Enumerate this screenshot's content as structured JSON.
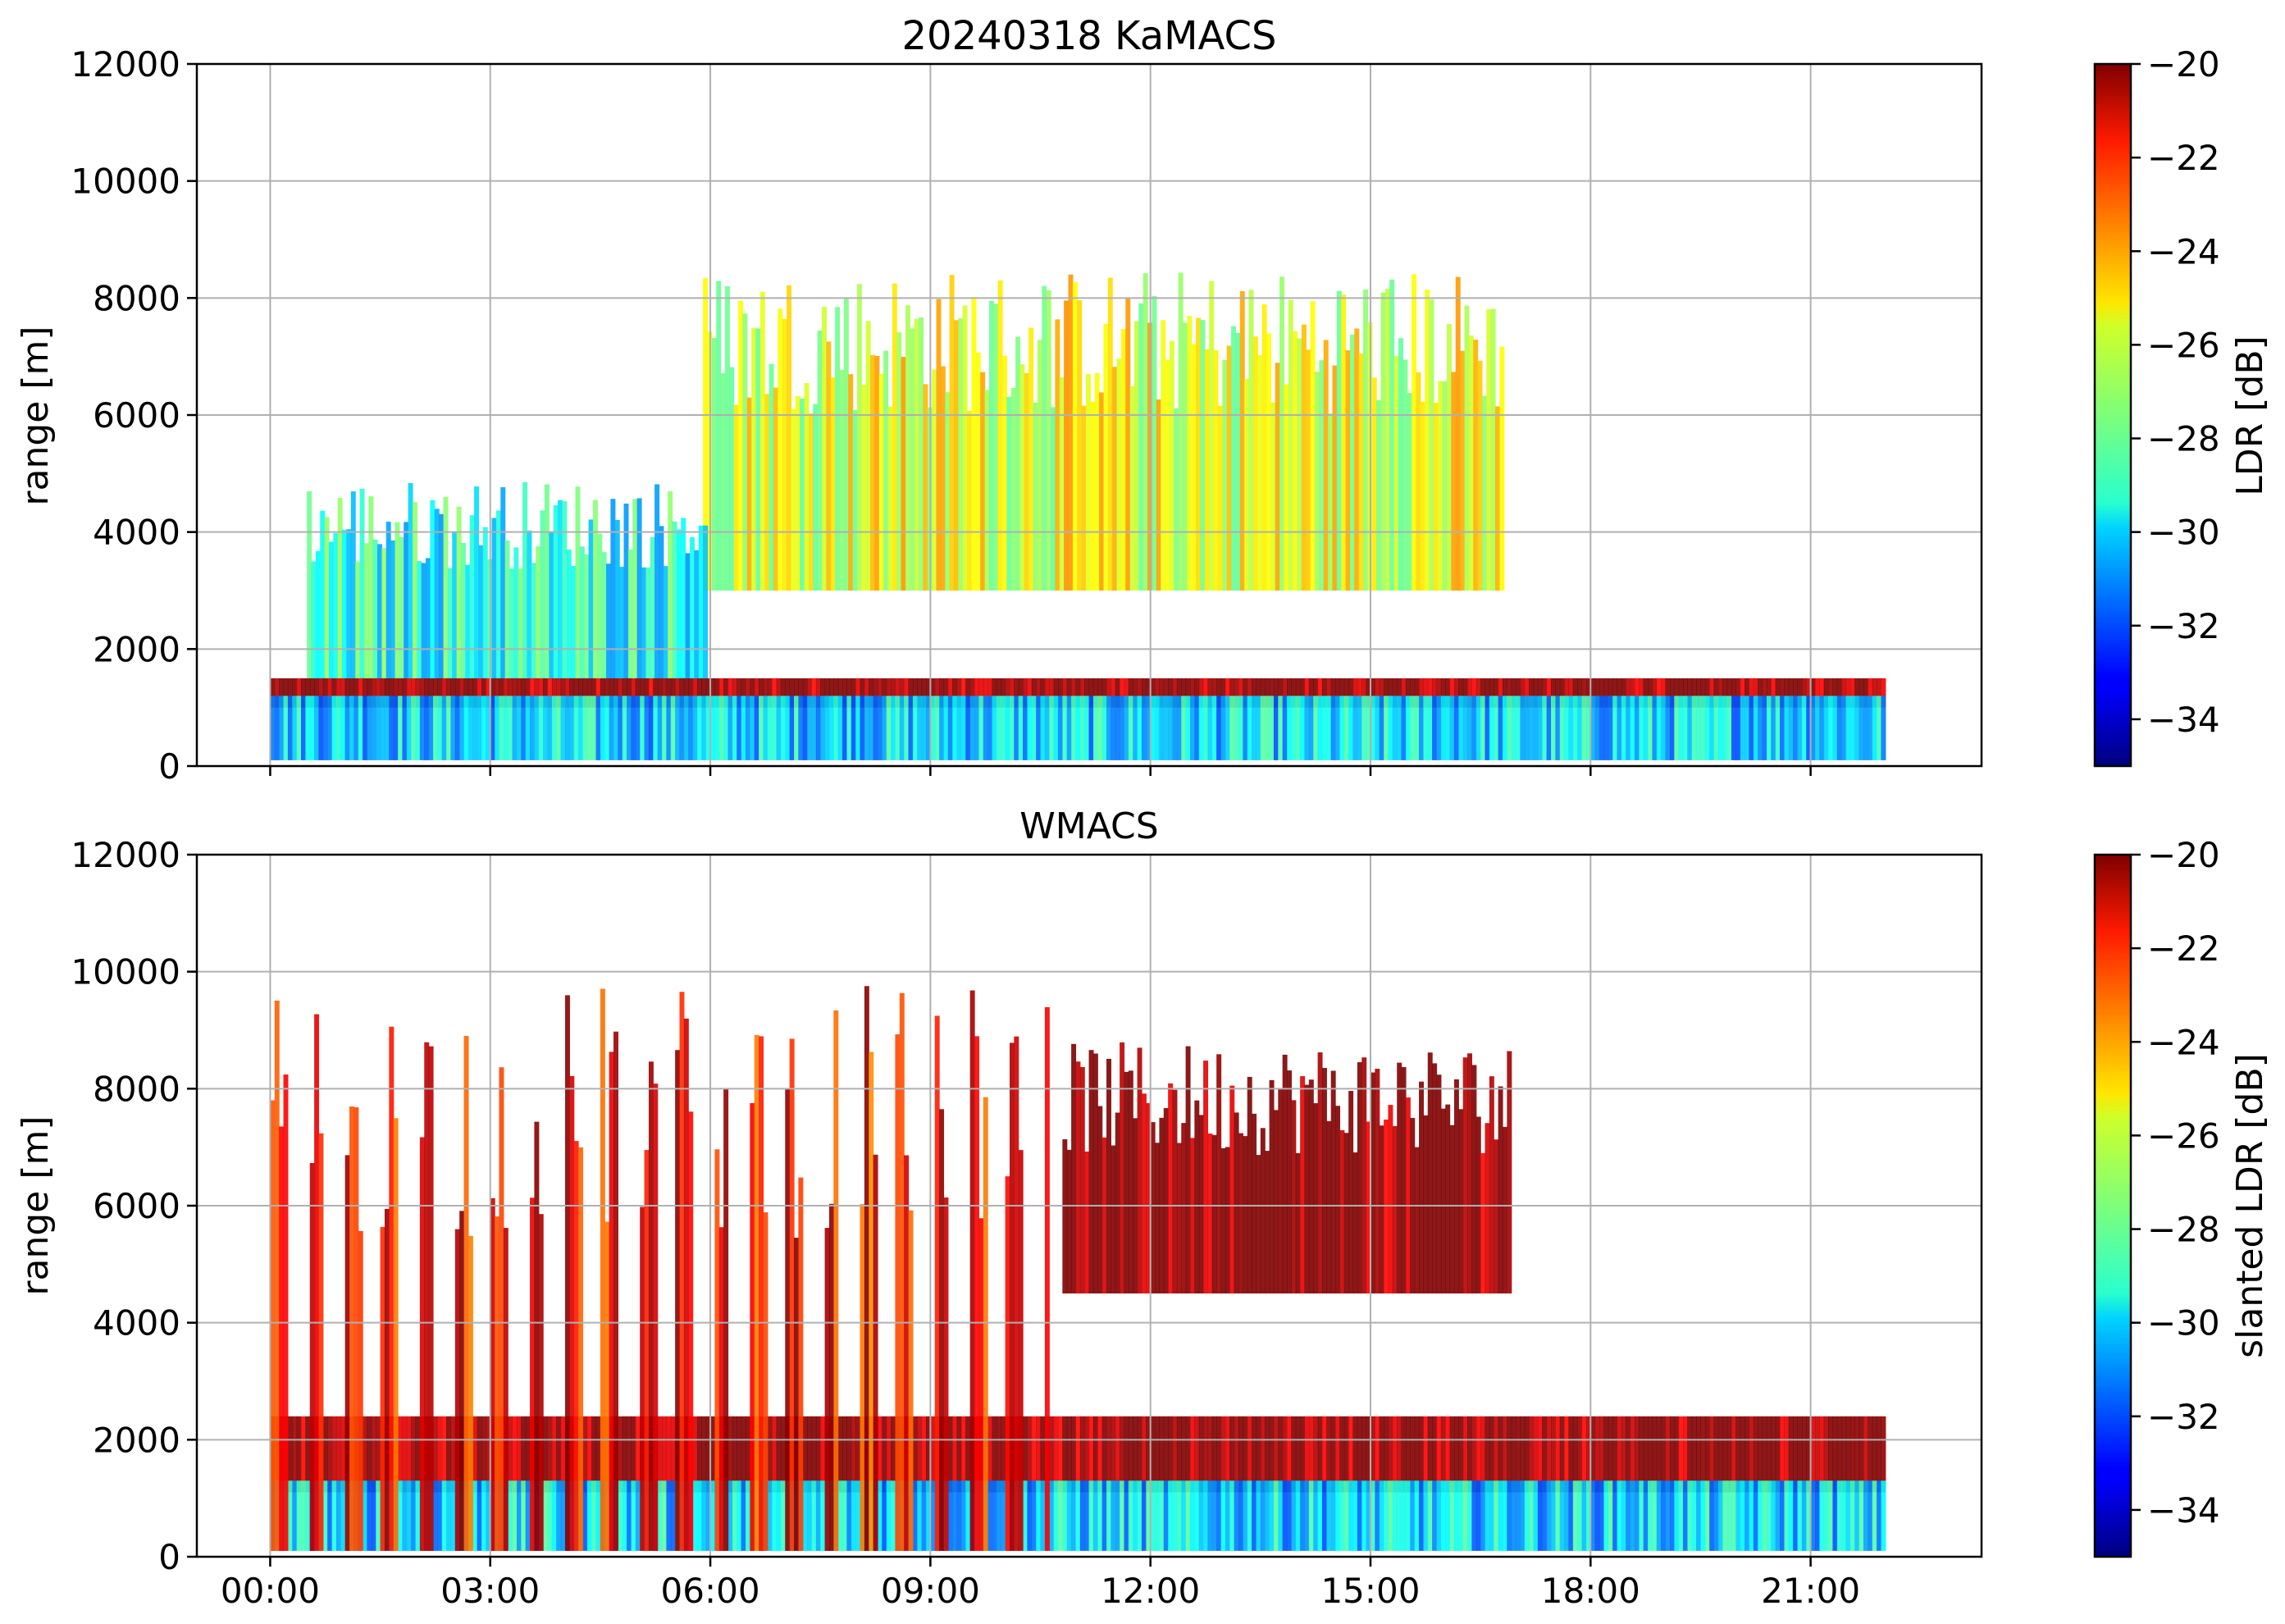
{
  "figure": {
    "colormap": "jet",
    "colors": {
      "grid": "#b0b0b0",
      "frame": "#000000",
      "background": "#ffffff"
    }
  },
  "chart_data": [
    {
      "type": "heatmap",
      "title": "20240318 KaMACS",
      "xlabel": "",
      "ylabel": "range [m]",
      "xlim_hours": [
        -1,
        23.33
      ],
      "ylim": [
        0,
        12000
      ],
      "x_ticks": [
        {
          "hour": 0,
          "label": "00:00"
        },
        {
          "hour": 3,
          "label": "03:00"
        },
        {
          "hour": 6,
          "label": "06:00"
        },
        {
          "hour": 9,
          "label": "09:00"
        },
        {
          "hour": 12,
          "label": "12:00"
        },
        {
          "hour": 15,
          "label": "15:00"
        },
        {
          "hour": 18,
          "label": "18:00"
        },
        {
          "hour": 21,
          "label": "21:00"
        }
      ],
      "show_x_tick_labels": false,
      "y_ticks": [
        0,
        2000,
        4000,
        6000,
        8000,
        10000,
        12000
      ],
      "grid": true,
      "colorbar": {
        "label": "LDR [dB]",
        "range": [
          -35,
          -20
        ],
        "ticks": [
          -20,
          -22,
          -24,
          -26,
          -28,
          -30,
          -32,
          -34
        ]
      },
      "features": [
        {
          "name": "melting layer / bright band",
          "x": [
            0.0,
            22.0
          ],
          "y_m": [
            1000,
            1500
          ],
          "ldr_db": -20
        },
        {
          "name": "low-level rain",
          "x": [
            0.0,
            22.0
          ],
          "y_m": [
            100,
            1200
          ],
          "ldr_db": -30
        },
        {
          "name": "ice cloud",
          "x": [
            5.9,
            16.8
          ],
          "y_m": [
            3000,
            8500
          ],
          "ldr_db": -26
        },
        {
          "name": "early shallow cloud",
          "x": [
            0.5,
            5.9
          ],
          "y_m": [
            1500,
            4900
          ],
          "ldr_db": -29
        }
      ]
    },
    {
      "type": "heatmap",
      "title": "WMACS",
      "xlabel": "",
      "ylabel": "range [m]",
      "xlim_hours": [
        -1,
        23.33
      ],
      "ylim": [
        0,
        12000
      ],
      "x_ticks": [
        {
          "hour": 0,
          "label": "00:00"
        },
        {
          "hour": 3,
          "label": "03:00"
        },
        {
          "hour": 6,
          "label": "06:00"
        },
        {
          "hour": 9,
          "label": "09:00"
        },
        {
          "hour": 12,
          "label": "12:00"
        },
        {
          "hour": 15,
          "label": "15:00"
        },
        {
          "hour": 18,
          "label": "18:00"
        },
        {
          "hour": 21,
          "label": "21:00"
        }
      ],
      "show_x_tick_labels": true,
      "y_ticks": [
        0,
        2000,
        4000,
        6000,
        8000,
        10000,
        12000
      ],
      "grid": true,
      "colorbar": {
        "label": "slanted LDR [dB]",
        "range": [
          -35,
          -20
        ],
        "ticks": [
          -20,
          -22,
          -24,
          -26,
          -28,
          -30,
          -32,
          -34
        ]
      },
      "features": [
        {
          "name": "cloud top (saturated)",
          "x": [
            10.8,
            16.9
          ],
          "y_m": [
            4500,
            8800
          ],
          "ldr_db": -20
        },
        {
          "name": "melting layer",
          "x": [
            0.0,
            22.0
          ],
          "y_m": [
            1100,
            2400
          ],
          "ldr_db": -20
        },
        {
          "name": "low-level rain",
          "x": [
            0.0,
            22.0
          ],
          "y_m": [
            100,
            1300
          ],
          "ldr_db": -30
        },
        {
          "name": "scanning stripes",
          "x": [
            0.0,
            10.6
          ],
          "y_m": [
            100,
            9800
          ],
          "ldr_db": -22
        }
      ]
    }
  ]
}
